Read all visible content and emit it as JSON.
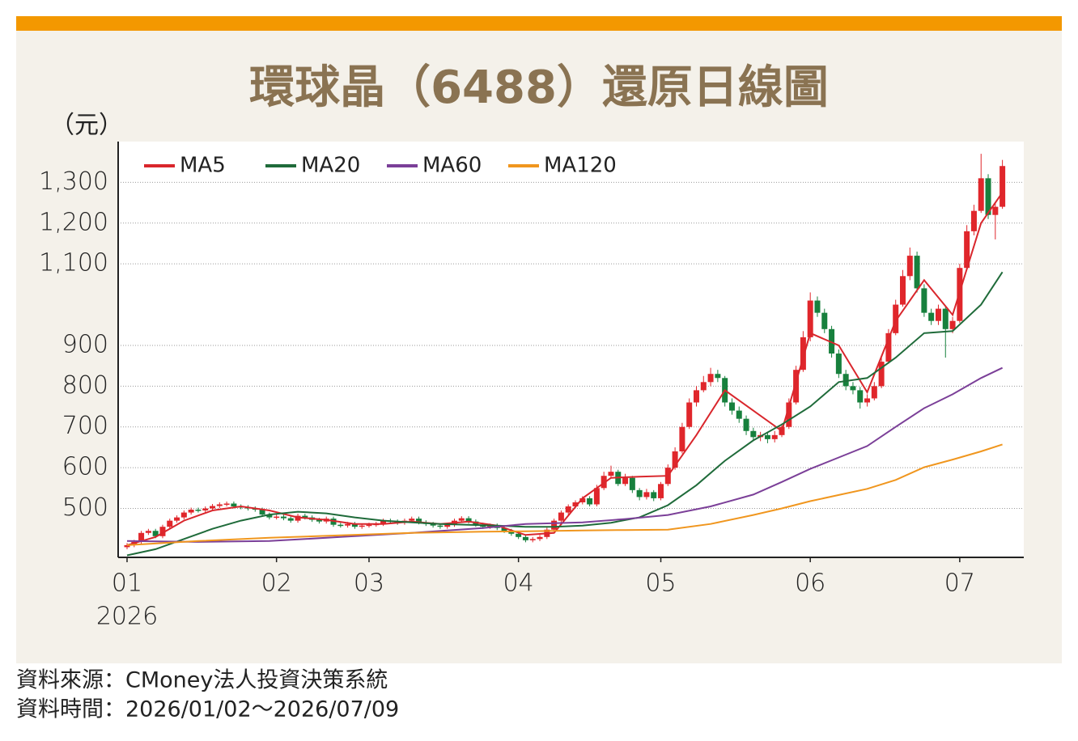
{
  "chart_data": {
    "type": "candlestick",
    "title": "環球晶（6488）還原日線圖",
    "y_unit": "（元）",
    "year_label": "2026",
    "source": "資料來源：CMoney法人投資決策系統",
    "period": "資料時間：2026/01/02～2026/07/09",
    "xlim": [
      -1.25,
      126
    ],
    "ylim": [
      380,
      1400
    ],
    "xticks": [
      {
        "value": 0,
        "label": "01"
      },
      {
        "value": 21,
        "label": "02"
      },
      {
        "value": 34,
        "label": "03"
      },
      {
        "value": 55,
        "label": "04"
      },
      {
        "value": 75,
        "label": "05"
      },
      {
        "value": 96,
        "label": "06"
      },
      {
        "value": 117,
        "label": "07"
      }
    ],
    "yticks": [
      500,
      600,
      700,
      800,
      900,
      {
        "value": 1100,
        "label": "1,100"
      },
      {
        "value": 1200,
        "label": "1,200"
      },
      {
        "value": 1300,
        "label": "1,300"
      }
    ],
    "grid": true,
    "up_color": "#e0262b",
    "down_color": "#17803d",
    "candles": {
      "open": [
        405,
        410,
        418,
        440,
        445,
        432,
        455,
        470,
        478,
        490,
        497,
        495,
        500,
        506,
        510,
        512,
        505,
        503,
        500,
        497,
        485,
        478,
        480,
        476,
        470,
        482,
        478,
        472,
        468,
        475,
        460,
        458,
        462,
        455,
        458,
        460,
        462,
        470,
        468,
        465,
        470,
        475,
        466,
        462,
        458,
        455,
        460,
        470,
        476,
        468,
        460,
        455,
        458,
        452,
        445,
        438,
        430,
        422,
        425,
        430,
        448,
        470,
        490,
        505,
        515,
        525,
        510,
        550,
        580,
        590,
        560,
        575,
        545,
        528,
        540,
        525,
        560,
        600,
        640,
        700,
        760,
        790,
        810,
        830,
        820,
        760,
        740,
        720,
        690,
        675,
        680,
        670,
        680,
        700,
        760,
        840,
        920,
        1010,
        980,
        940,
        880,
        830,
        800,
        790,
        760,
        770,
        800,
        860,
        930,
        1000,
        1070,
        1120,
        1040,
        980,
        960,
        990,
        940,
        960,
        1090,
        1180,
        1230,
        1310,
        1220,
        1240
      ],
      "high": [
        415,
        423,
        445,
        450,
        450,
        460,
        475,
        483,
        495,
        502,
        502,
        505,
        511,
        515,
        517,
        517,
        510,
        508,
        505,
        502,
        490,
        485,
        485,
        481,
        487,
        487,
        483,
        477,
        480,
        480,
        465,
        467,
        467,
        463,
        465,
        467,
        475,
        475,
        473,
        475,
        480,
        480,
        471,
        467,
        463,
        465,
        475,
        481,
        481,
        473,
        465,
        463,
        463,
        457,
        450,
        443,
        435,
        430,
        435,
        453,
        475,
        495,
        510,
        520,
        530,
        530,
        558,
        590,
        605,
        595,
        585,
        580,
        550,
        548,
        545,
        565,
        608,
        650,
        710,
        770,
        800,
        825,
        845,
        840,
        825,
        770,
        750,
        728,
        698,
        688,
        688,
        690,
        708,
        770,
        850,
        935,
        1030,
        1020,
        990,
        948,
        890,
        840,
        810,
        798,
        780,
        810,
        870,
        940,
        1012,
        1085,
        1140,
        1130,
        1050,
        990,
        1000,
        995,
        970,
        1100,
        1195,
        1245,
        1370,
        1320,
        1250,
        1355
      ],
      "low": [
        400,
        405,
        413,
        435,
        427,
        427,
        450,
        465,
        473,
        485,
        490,
        490,
        495,
        501,
        505,
        500,
        498,
        495,
        492,
        480,
        473,
        473,
        471,
        465,
        465,
        473,
        467,
        463,
        463,
        455,
        453,
        453,
        450,
        450,
        453,
        455,
        457,
        463,
        460,
        460,
        465,
        461,
        457,
        453,
        450,
        450,
        455,
        465,
        463,
        455,
        450,
        450,
        447,
        440,
        433,
        425,
        417,
        417,
        420,
        425,
        443,
        465,
        485,
        500,
        510,
        505,
        505,
        545,
        575,
        555,
        555,
        538,
        520,
        522,
        518,
        520,
        555,
        595,
        635,
        695,
        750,
        785,
        800,
        810,
        750,
        730,
        710,
        680,
        665,
        665,
        660,
        662,
        675,
        695,
        755,
        835,
        910,
        970,
        930,
        870,
        820,
        790,
        780,
        745,
        750,
        765,
        795,
        855,
        925,
        995,
        1060,
        1030,
        970,
        950,
        950,
        870,
        930,
        955,
        1085,
        1170,
        1225,
        1210,
        1160,
        1235
      ],
      "close": [
        410,
        418,
        440,
        445,
        432,
        455,
        470,
        478,
        490,
        497,
        495,
        500,
        506,
        510,
        512,
        505,
        503,
        500,
        497,
        485,
        478,
        480,
        476,
        470,
        482,
        478,
        472,
        468,
        475,
        460,
        458,
        462,
        455,
        458,
        460,
        462,
        470,
        468,
        465,
        470,
        475,
        466,
        462,
        458,
        455,
        460,
        470,
        476,
        468,
        460,
        455,
        458,
        452,
        445,
        438,
        430,
        422,
        425,
        430,
        448,
        470,
        490,
        505,
        515,
        525,
        510,
        550,
        580,
        590,
        560,
        575,
        545,
        528,
        540,
        525,
        560,
        600,
        640,
        700,
        760,
        790,
        810,
        830,
        820,
        760,
        740,
        720,
        690,
        675,
        680,
        670,
        680,
        700,
        760,
        840,
        920,
        1010,
        980,
        940,
        880,
        830,
        800,
        790,
        760,
        770,
        800,
        860,
        930,
        1000,
        1070,
        1120,
        1040,
        980,
        960,
        990,
        940,
        960,
        1090,
        1180,
        1230,
        1310,
        1220,
        1240,
        1340
      ]
    },
    "series": [
      {
        "name": "MA5",
        "color": "#d9262c",
        "x": [
          0,
          4,
          8,
          12,
          16,
          20,
          24,
          28,
          32,
          36,
          40,
          44,
          48,
          52,
          56,
          60,
          64,
          68,
          72,
          76,
          80,
          84,
          88,
          92,
          96,
          100,
          104,
          108,
          112,
          116,
          120,
          123
        ],
        "values": [
          410,
          430,
          470,
          495,
          505,
          495,
          478,
          472,
          462,
          462,
          468,
          462,
          468,
          458,
          435,
          440,
          525,
          575,
          578,
          580,
          680,
          790,
          740,
          690,
          930,
          900,
          785,
          960,
          1060,
          975,
          1200,
          1275
        ]
      },
      {
        "name": "MA20",
        "color": "#1f6b3a",
        "x": [
          0,
          4,
          8,
          12,
          16,
          20,
          24,
          28,
          32,
          36,
          40,
          44,
          48,
          52,
          56,
          60,
          64,
          68,
          72,
          76,
          80,
          84,
          88,
          92,
          96,
          100,
          104,
          108,
          112,
          116,
          120,
          123
        ],
        "values": [
          385,
          400,
          425,
          450,
          470,
          485,
          492,
          488,
          478,
          470,
          466,
          462,
          460,
          458,
          455,
          455,
          458,
          465,
          478,
          508,
          557,
          617,
          667,
          706,
          750,
          810,
          820,
          870,
          930,
          935,
          1000,
          1080
        ]
      },
      {
        "name": "MA60",
        "color": "#7b3f98",
        "x": [
          0,
          10,
          20,
          30,
          40,
          50,
          56,
          64,
          70,
          76,
          82,
          88,
          92,
          96,
          100,
          104,
          108,
          112,
          116,
          120,
          123
        ],
        "values": [
          420,
          418,
          420,
          430,
          440,
          452,
          462,
          466,
          474,
          484,
          505,
          534,
          565,
          597,
          625,
          653,
          700,
          746,
          780,
          820,
          845
        ]
      },
      {
        "name": "MA120",
        "color": "#f0961e",
        "x": [
          0,
          10,
          20,
          30,
          40,
          50,
          56,
          64,
          70,
          76,
          82,
          88,
          92,
          96,
          100,
          104,
          108,
          112,
          116,
          120,
          123
        ],
        "values": [
          410,
          420,
          428,
          434,
          440,
          443,
          444,
          446,
          447,
          448,
          462,
          484,
          500,
          518,
          533,
          548,
          570,
          601,
          620,
          640,
          657
        ]
      }
    ]
  }
}
